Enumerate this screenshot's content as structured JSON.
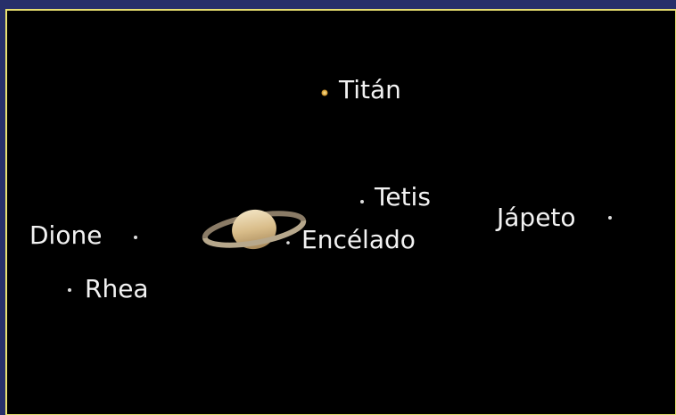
{
  "moons": [
    {
      "label": "Titán"
    },
    {
      "label": "Tetis"
    },
    {
      "label": "Jápeto"
    },
    {
      "label": "Dione"
    },
    {
      "label": "Encélado"
    },
    {
      "label": "Rhea"
    }
  ]
}
